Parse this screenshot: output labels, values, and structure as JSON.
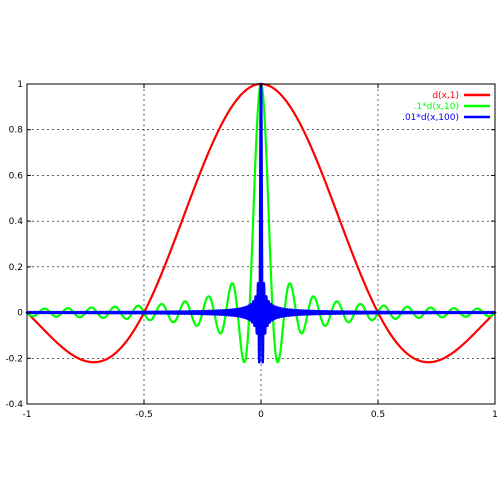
{
  "chart_data": {
    "type": "line",
    "title": "",
    "xlabel": "",
    "ylabel": "",
    "xlim": [
      -1,
      1
    ],
    "ylim": [
      -0.4,
      1
    ],
    "grid": true,
    "legend_placement": "top-right",
    "x_ticks": [
      -1,
      -0.5,
      0,
      0.5,
      1
    ],
    "x_tick_labels": [
      "-1",
      "-0.5",
      "0",
      "0.5",
      "1"
    ],
    "y_ticks": [
      -0.4,
      -0.2,
      0,
      0.2,
      0.4,
      0.6,
      0.8,
      1
    ],
    "y_tick_labels": [
      "-0.4",
      "-0.2",
      "0",
      "0.2",
      "0.4",
      "0.6",
      "0.8",
      "1"
    ],
    "series": [
      {
        "name": "d(x,1)",
        "color": "#ff0000",
        "formula": "sin(2*pi*1*x)/(2*pi*1*x)",
        "n": 1,
        "scale": 1,
        "x": [
          -1,
          -0.9,
          -0.8,
          -0.7,
          -0.6,
          -0.5,
          -0.4,
          -0.3,
          -0.2,
          -0.1,
          0,
          0.1,
          0.2,
          0.3,
          0.4,
          0.5,
          0.6,
          0.7,
          0.8,
          0.9,
          1
        ],
        "y": [
          0,
          -0.1,
          -0.19,
          -0.22,
          -0.16,
          0,
          0.24,
          0.5,
          0.76,
          0.94,
          1,
          0.94,
          0.76,
          0.5,
          0.24,
          0,
          -0.16,
          -0.22,
          -0.19,
          -0.1,
          0
        ]
      },
      {
        "name": ".1*d(x,10)",
        "color": "#00ff00",
        "formula": "0.1*sin(2*pi*10*x)/(2*pi*0.1*10*x... scaled so peak = 1",
        "n": 10,
        "scale": 0.1,
        "x": [
          -1,
          -0.5,
          -0.075,
          -0.05,
          -0.025,
          0,
          0.025,
          0.05,
          0.075,
          0.5,
          1
        ],
        "y": [
          0,
          0,
          -0.22,
          0,
          0.64,
          1,
          0.64,
          0,
          -0.22,
          0,
          0
        ]
      },
      {
        "name": ".01*d(x,100)",
        "color": "#0000ff",
        "formula": "sin(2*pi*100*x)/(2*pi*100*x), peak = 1",
        "n": 100,
        "scale": 0.01,
        "x": [
          -1,
          -0.0075,
          0,
          0.0075,
          1
        ],
        "y": [
          0,
          -0.22,
          1,
          -0.22,
          0
        ]
      }
    ]
  }
}
